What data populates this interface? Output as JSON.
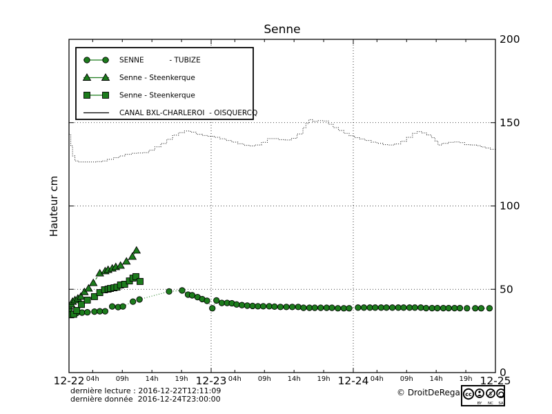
{
  "page": {
    "background": "#ffffff"
  },
  "footer": {
    "line1": "dernière lecture : 2016-12-22T12:11:09",
    "line2": "dernière donnée  2016-12-24T23:00:00",
    "copyright": "© DroitDeRegard.be",
    "cc": [
      "cc",
      "BY",
      "NC",
      "SA"
    ]
  },
  "chart_data": {
    "type": "line",
    "title": "Senne",
    "xlabel": "",
    "ylabel": "Hauteur cm",
    "ylim": [
      0,
      200
    ],
    "xlim_hours": [
      0,
      72
    ],
    "x_start_date": "12-22",
    "grid": {
      "h_values": [
        50,
        100,
        150
      ],
      "v_hours": [
        24,
        48
      ],
      "style": "dotted"
    },
    "legend_position": "upper left",
    "colors": {
      "series_green": "#1c7c1c",
      "line_black": "#000000",
      "marker_edge": "#000000"
    },
    "y_ticks": [
      {
        "v": 0,
        "label": "0"
      },
      {
        "v": 50,
        "label": "50"
      },
      {
        "v": 100,
        "label": "100"
      },
      {
        "v": 150,
        "label": "150"
      },
      {
        "v": 200,
        "label": "200"
      }
    ],
    "x_major_ticks": [
      {
        "h": 0,
        "label": "12-22"
      },
      {
        "h": 24,
        "label": "12-23"
      },
      {
        "h": 48,
        "label": "12-24"
      },
      {
        "h": 72,
        "label": "12-25"
      }
    ],
    "x_minor_ticks": [
      {
        "h": 4,
        "label": "04h"
      },
      {
        "h": 9,
        "label": "09h"
      },
      {
        "h": 14,
        "label": "14h"
      },
      {
        "h": 19,
        "label": "19h"
      },
      {
        "h": 28,
        "label": "04h"
      },
      {
        "h": 33,
        "label": "09h"
      },
      {
        "h": 38,
        "label": "14h"
      },
      {
        "h": 43,
        "label": "19h"
      },
      {
        "h": 52,
        "label": "04h"
      },
      {
        "h": 57,
        "label": "09h"
      },
      {
        "h": 62,
        "label": "14h"
      },
      {
        "h": 67,
        "label": "19h"
      }
    ],
    "series": [
      {
        "name": "SENNE           - TUBIZE",
        "marker": "circle",
        "color": "#1c7c1c",
        "line_style": "dotted",
        "points": [
          [
            0,
            36.5
          ],
          [
            0.35,
            35.3
          ],
          [
            0.8,
            35.3
          ],
          [
            1.3,
            35.8
          ],
          [
            2.2,
            36
          ],
          [
            3.1,
            36.2
          ],
          [
            4.3,
            36.6
          ],
          [
            5.2,
            36.8
          ],
          [
            6.1,
            36.8
          ],
          [
            7.3,
            39.7
          ],
          [
            8.3,
            39.3
          ],
          [
            9.1,
            39.7
          ],
          [
            10.8,
            42.6
          ],
          [
            11.9,
            43.9
          ],
          [
            16.9,
            48.7
          ],
          [
            19.1,
            49.3
          ],
          [
            20.1,
            46.8
          ],
          [
            20.8,
            46.4
          ],
          [
            21.7,
            45.3
          ],
          [
            22.5,
            44.1
          ],
          [
            23.3,
            43.1
          ],
          [
            24.2,
            38.6
          ],
          [
            24.9,
            43.3
          ],
          [
            25.8,
            41.8
          ],
          [
            26.7,
            41.8
          ],
          [
            27.5,
            41.6
          ],
          [
            28.3,
            40.9
          ],
          [
            29.2,
            40.5
          ],
          [
            30.1,
            40.2
          ],
          [
            31,
            40
          ],
          [
            31.9,
            39.8
          ],
          [
            32.8,
            39.8
          ],
          [
            33.8,
            39.8
          ],
          [
            34.7,
            39.6
          ],
          [
            35.7,
            39.4
          ],
          [
            36.7,
            39.4
          ],
          [
            37.7,
            39.4
          ],
          [
            38.7,
            39.4
          ],
          [
            39.6,
            38.9
          ],
          [
            40.6,
            38.9
          ],
          [
            41.5,
            38.9
          ],
          [
            42.5,
            38.9
          ],
          [
            43.5,
            38.9
          ],
          [
            44.4,
            38.9
          ],
          [
            45.4,
            38.6
          ],
          [
            46.4,
            38.6
          ],
          [
            47.3,
            38.6
          ],
          [
            48.8,
            39
          ],
          [
            49.8,
            39
          ],
          [
            50.8,
            39
          ],
          [
            51.7,
            39
          ],
          [
            52.7,
            39
          ],
          [
            53.6,
            39
          ],
          [
            54.6,
            39
          ],
          [
            55.6,
            39
          ],
          [
            56.5,
            39
          ],
          [
            57.5,
            39
          ],
          [
            58.4,
            39
          ],
          [
            59.4,
            39
          ],
          [
            60.3,
            38.7
          ],
          [
            61.3,
            38.7
          ],
          [
            62.2,
            38.7
          ],
          [
            63.2,
            38.7
          ],
          [
            64.1,
            38.7
          ],
          [
            65.1,
            38.7
          ],
          [
            66,
            38.7
          ],
          [
            67.2,
            38.6
          ],
          [
            68.6,
            38.6
          ],
          [
            69.6,
            38.6
          ],
          [
            71,
            38.6
          ]
        ]
      },
      {
        "name": "Senne - Steenkerque",
        "marker": "triangle",
        "color": "#1c7c1c",
        "line_style": "dashed",
        "points": [
          [
            0,
            39.8
          ],
          [
            0.35,
            41
          ],
          [
            0.6,
            42.6
          ],
          [
            1,
            43.5
          ],
          [
            1.5,
            44.5
          ],
          [
            2,
            45.6
          ],
          [
            2.6,
            48.4
          ],
          [
            3.3,
            50.5
          ],
          [
            4.1,
            53.8
          ],
          [
            5.2,
            59.6
          ],
          [
            6.1,
            60.9
          ],
          [
            6.6,
            61.7
          ],
          [
            7.3,
            62.5
          ],
          [
            7.9,
            63.4
          ],
          [
            8.7,
            64.2
          ],
          [
            9.7,
            66.7
          ],
          [
            10.7,
            69.6
          ],
          [
            11.4,
            73.3
          ]
        ]
      },
      {
        "name": "Senne - Steenkerque",
        "marker": "square",
        "color": "#1c7c1c",
        "line_style": "dashed",
        "points": [
          [
            0,
            36.4
          ],
          [
            0.3,
            34.7
          ],
          [
            0.8,
            35
          ],
          [
            1.3,
            37.3
          ],
          [
            2.1,
            40.9
          ],
          [
            3.1,
            43.5
          ],
          [
            4.3,
            45.6
          ],
          [
            5.2,
            48
          ],
          [
            6,
            49.7
          ],
          [
            6.6,
            50.1
          ],
          [
            7,
            50.5
          ],
          [
            7.6,
            50.9
          ],
          [
            8.1,
            51.3
          ],
          [
            8.7,
            52.6
          ],
          [
            9.4,
            53
          ],
          [
            10.2,
            55
          ],
          [
            10.8,
            56.7
          ],
          [
            11.3,
            57.6
          ],
          [
            12,
            54.7
          ]
        ]
      },
      {
        "name": "CANAL BXL-CHARLEROI  - OISQUERCQ",
        "marker": "none",
        "color": "#000000",
        "line_style": "dotted-step",
        "points": [
          [
            0,
            143
          ],
          [
            0.3,
            136
          ],
          [
            0.6,
            130
          ],
          [
            1,
            127
          ],
          [
            1.5,
            126.4
          ],
          [
            2.5,
            126.4
          ],
          [
            3.5,
            126.4
          ],
          [
            4.5,
            126.6
          ],
          [
            5.5,
            127
          ],
          [
            6.5,
            128
          ],
          [
            7.5,
            129
          ],
          [
            8.5,
            130
          ],
          [
            9.5,
            131
          ],
          [
            10.5,
            131.6
          ],
          [
            11.5,
            131.8
          ],
          [
            12.5,
            132
          ],
          [
            13.5,
            133.5
          ],
          [
            14.5,
            135.5
          ],
          [
            15.5,
            137.5
          ],
          [
            16.5,
            140
          ],
          [
            17.5,
            142.5
          ],
          [
            18.5,
            144
          ],
          [
            19.5,
            145
          ],
          [
            20.5,
            144.3
          ],
          [
            21.5,
            143
          ],
          [
            22.5,
            142.3
          ],
          [
            23.5,
            141.8
          ],
          [
            24.5,
            141.2
          ],
          [
            25.5,
            140.3
          ],
          [
            26.5,
            139.3
          ],
          [
            27.5,
            138.3
          ],
          [
            28.5,
            137.3
          ],
          [
            29.5,
            136.4
          ],
          [
            30.5,
            136
          ],
          [
            31.5,
            136.6
          ],
          [
            32.5,
            138.2
          ],
          [
            33.5,
            140.4
          ],
          [
            34.5,
            140.4
          ],
          [
            35.5,
            139.8
          ],
          [
            36.5,
            139.6
          ],
          [
            37.5,
            140.6
          ],
          [
            38.5,
            143.2
          ],
          [
            39.5,
            147
          ],
          [
            40,
            149.5
          ],
          [
            40.5,
            151.8
          ],
          [
            41.2,
            150.8
          ],
          [
            42,
            151.2
          ],
          [
            43,
            151
          ],
          [
            43.8,
            149
          ],
          [
            44.6,
            147
          ],
          [
            45.5,
            145.3
          ],
          [
            46.4,
            143.6
          ],
          [
            47.3,
            142.2
          ],
          [
            48.2,
            141
          ],
          [
            49.1,
            140.2
          ],
          [
            50,
            139.3
          ],
          [
            51,
            138.3
          ],
          [
            52,
            137.6
          ],
          [
            53,
            136.8
          ],
          [
            54,
            136.6
          ],
          [
            55,
            137.2
          ],
          [
            56,
            138.8
          ],
          [
            57,
            141.2
          ],
          [
            58,
            143.6
          ],
          [
            58.8,
            144.6
          ],
          [
            59.6,
            143.8
          ],
          [
            60.4,
            142.6
          ],
          [
            61.2,
            141
          ],
          [
            61.8,
            139
          ],
          [
            62.3,
            136.6
          ],
          [
            63,
            137.6
          ],
          [
            64,
            138.2
          ],
          [
            65,
            138.4
          ],
          [
            66,
            138
          ],
          [
            66.8,
            136.8
          ],
          [
            67.8,
            136.6
          ],
          [
            68.8,
            136.2
          ],
          [
            69.6,
            135.4
          ],
          [
            70.4,
            134.8
          ],
          [
            71.2,
            134
          ],
          [
            72,
            133.6
          ]
        ]
      }
    ]
  }
}
